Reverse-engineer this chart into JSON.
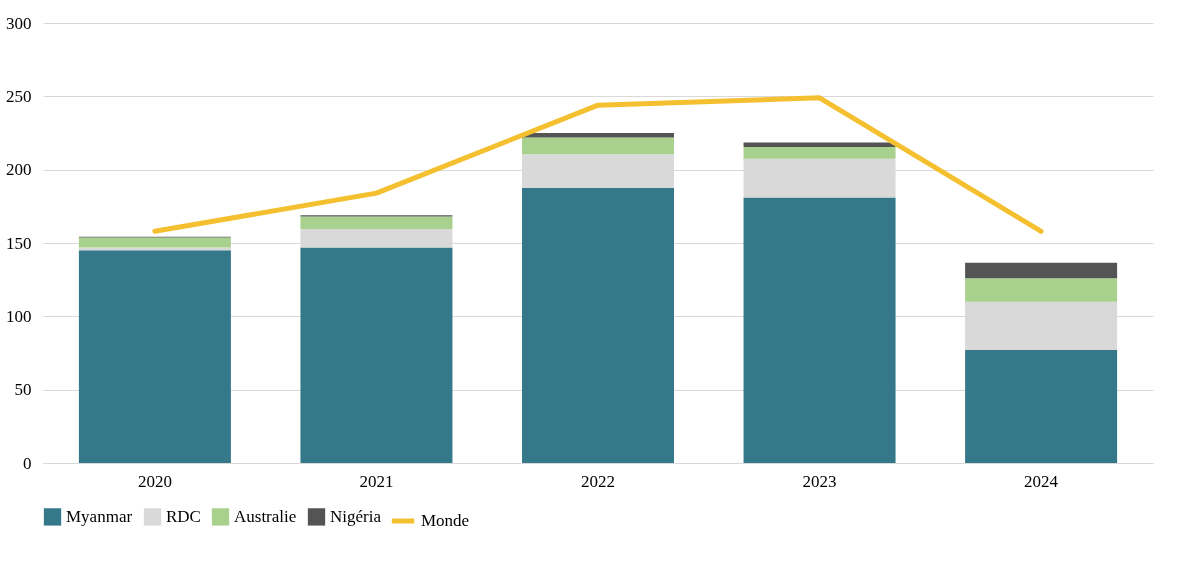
{
  "chart_data": {
    "type": "bar",
    "stacked": true,
    "categories": [
      "2020",
      "2021",
      "2022",
      "2023",
      "2024"
    ],
    "series": [
      {
        "name": "Myanmar",
        "color": "#34788a",
        "values": [
          145,
          147,
          187.5,
          181,
          77
        ]
      },
      {
        "name": "RDC",
        "color": "#d9d9d9",
        "values": [
          2,
          12.5,
          23,
          26.5,
          33
        ]
      },
      {
        "name": "Australie",
        "color": "#a9d18e",
        "values": [
          6.7,
          8.5,
          11.5,
          8,
          16
        ]
      },
      {
        "name": "Nigéria",
        "color": "#545454",
        "values": [
          0.5,
          1,
          3,
          3,
          10.5
        ]
      },
      {
        "name": "Monde",
        "type": "line",
        "line_style": "solid",
        "color": "#f4c02f",
        "values": [
          158,
          184,
          244,
          249,
          158
        ]
      }
    ],
    "ylim": [
      0,
      300
    ],
    "yticks": [
      0,
      50,
      100,
      150,
      200,
      250,
      300
    ],
    "grid": "y",
    "legend": "bottom",
    "marker": "none"
  }
}
